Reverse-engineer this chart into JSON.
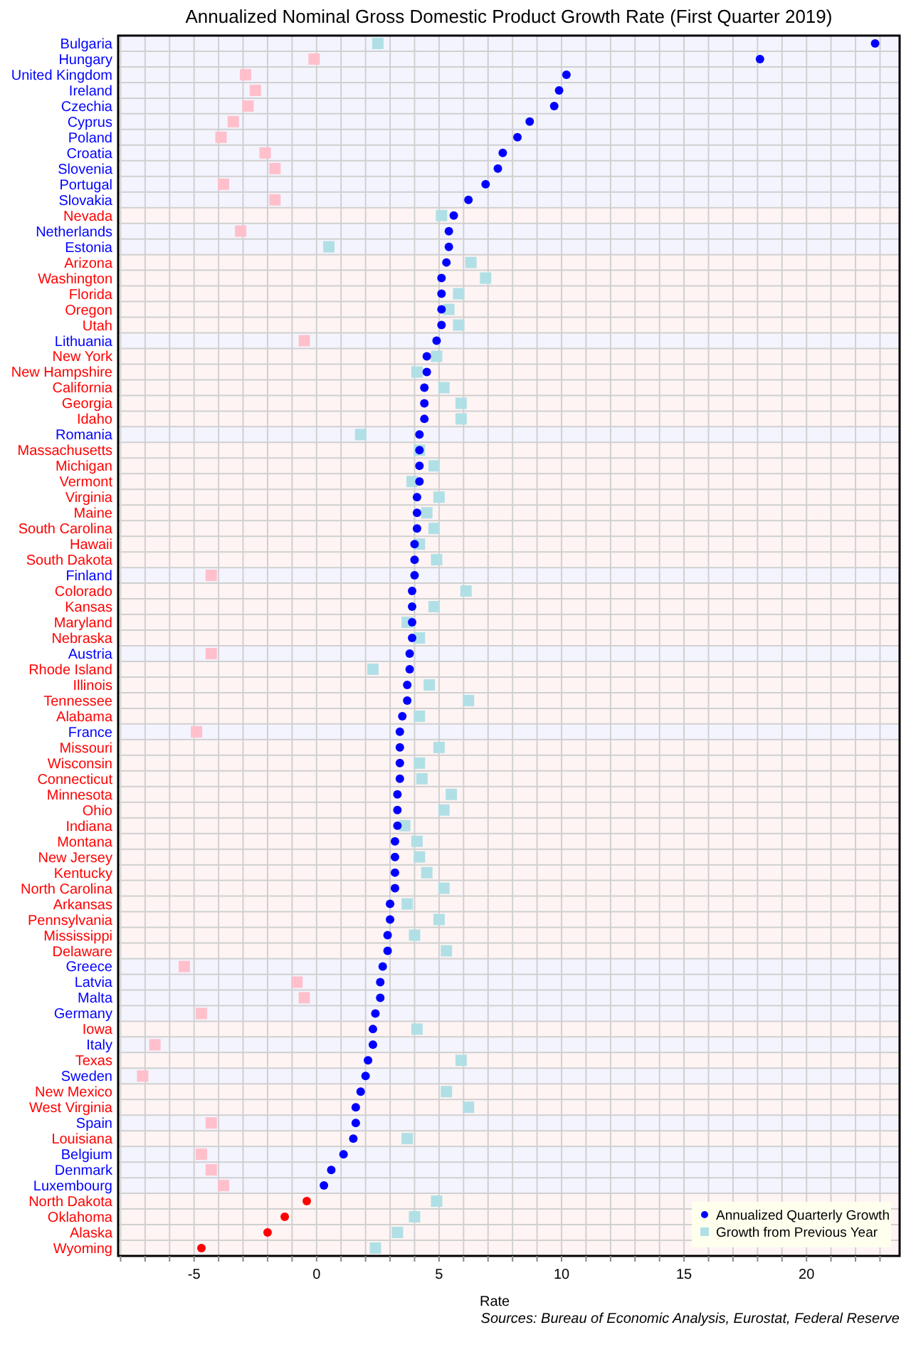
{
  "chart_data": {
    "type": "scatter",
    "title": "Annualized Nominal Gross Domestic Product Growth Rate (First Quarter 2019)",
    "xlabel": "Rate",
    "orientation": "horizontal",
    "annotations": [
      "Sources: Bureau of Economic Analysis, Eurostat, Federal Reserve"
    ],
    "categories": [
      "Bulgaria",
      "Hungary",
      "United Kingdom",
      "Ireland",
      "Czechia",
      "Cyprus",
      "Poland",
      "Croatia",
      "Slovenia",
      "Portugal",
      "Slovakia",
      "Nevada",
      "Netherlands",
      "Estonia",
      "Arizona",
      "Washington",
      "Florida",
      "Oregon",
      "Utah",
      "Lithuania",
      "New York",
      "New Hampshire",
      "California",
      "Georgia",
      "Idaho",
      "Romania",
      "Massachusetts",
      "Michigan",
      "Vermont",
      "Virginia",
      "Maine",
      "South Carolina",
      "Hawaii",
      "South Dakota",
      "Finland",
      "Colorado",
      "Kansas",
      "Maryland",
      "Nebraska",
      "Austria",
      "Rhode Island",
      "Illinois",
      "Tennessee",
      "Alabama",
      "France",
      "Missouri",
      "Wisconsin",
      "Connecticut",
      "Minnesota",
      "Ohio",
      "Indiana",
      "Montana",
      "New Jersey",
      "Kentucky",
      "North Carolina",
      "Arkansas",
      "Pennsylvania",
      "Mississippi",
      "Delaware",
      "Greece",
      "Latvia",
      "Malta",
      "Germany",
      "Iowa",
      "Italy",
      "Texas",
      "Sweden",
      "New Mexico",
      "West Virginia",
      "Spain",
      "Louisiana",
      "Belgium",
      "Denmark",
      "Luxembourg",
      "North Dakota",
      "Oklahoma",
      "Alaska",
      "Wyoming"
    ],
    "series": [
      {
        "name": "Growth from Previous Year",
        "marker": "square",
        "color": "#b0e0e6",
        "colors": [
          "#b0e0e6",
          "#ffc0cb",
          "#ffc0cb",
          "#ffc0cb",
          "#ffc0cb",
          "#ffc0cb",
          "#ffc0cb",
          "#ffc0cb",
          "#ffc0cb",
          "#ffc0cb",
          "#ffc0cb",
          "#b0e0e6",
          "#ffc0cb",
          "#b0e0e6",
          "#b0e0e6",
          "#b0e0e6",
          "#b0e0e6",
          "#b0e0e6",
          "#b0e0e6",
          "#ffc0cb",
          "#b0e0e6",
          "#b0e0e6",
          "#b0e0e6",
          "#b0e0e6",
          "#b0e0e6",
          "#b0e0e6",
          "#b0e0e6",
          "#b0e0e6",
          "#b0e0e6",
          "#b0e0e6",
          "#b0e0e6",
          "#b0e0e6",
          "#b0e0e6",
          "#b0e0e6",
          "#ffc0cb",
          "#b0e0e6",
          "#b0e0e6",
          "#b0e0e6",
          "#b0e0e6",
          "#ffc0cb",
          "#b0e0e6",
          "#b0e0e6",
          "#b0e0e6",
          "#b0e0e6",
          "#ffc0cb",
          "#b0e0e6",
          "#b0e0e6",
          "#b0e0e6",
          "#b0e0e6",
          "#b0e0e6",
          "#b0e0e6",
          "#b0e0e6",
          "#b0e0e6",
          "#b0e0e6",
          "#b0e0e6",
          "#b0e0e6",
          "#b0e0e6",
          "#b0e0e6",
          "#b0e0e6",
          "#ffc0cb",
          "#ffc0cb",
          "#ffc0cb",
          "#ffc0cb",
          "#b0e0e6",
          "#ffc0cb",
          "#b0e0e6",
          "#ffc0cb",
          "#b0e0e6",
          "#b0e0e6",
          "#ffc0cb",
          "#b0e0e6",
          "#ffc0cb",
          "#ffc0cb",
          "#ffc0cb",
          "#b0e0e6",
          "#b0e0e6",
          "#b0e0e6",
          "#b0e0e6"
        ],
        "values": [
          2.5,
          -0.1,
          -2.9,
          -2.5,
          -2.8,
          -3.4,
          -3.9,
          -2.1,
          -1.7,
          -3.8,
          -1.7,
          5.1,
          -3.1,
          0.5,
          6.3,
          6.9,
          5.8,
          5.4,
          5.8,
          -0.5,
          4.9,
          4.1,
          5.2,
          5.9,
          5.9,
          1.8,
          4.2,
          4.8,
          3.9,
          5.0,
          4.5,
          4.8,
          4.2,
          4.9,
          -4.3,
          6.1,
          4.8,
          3.7,
          4.2,
          -4.3,
          2.3,
          4.6,
          6.2,
          4.2,
          -4.9,
          5.0,
          4.2,
          4.3,
          5.5,
          5.2,
          3.6,
          4.1,
          4.2,
          4.5,
          5.2,
          3.7,
          5.0,
          4.0,
          5.3,
          -5.4,
          -0.8,
          -0.5,
          -4.7,
          4.1,
          -6.6,
          5.9,
          -7.1,
          5.3,
          6.2,
          -4.3,
          3.7,
          -4.7,
          -4.3,
          -3.8,
          4.9,
          4.0,
          3.3,
          2.4
        ]
      },
      {
        "name": "Annualized Quarterly Growth",
        "marker": "circle",
        "color": "#0000ff",
        "colors": [
          "#0000ff",
          "#0000ff",
          "#0000ff",
          "#0000ff",
          "#0000ff",
          "#0000ff",
          "#0000ff",
          "#0000ff",
          "#0000ff",
          "#0000ff",
          "#0000ff",
          "#0000ff",
          "#0000ff",
          "#0000ff",
          "#0000ff",
          "#0000ff",
          "#0000ff",
          "#0000ff",
          "#0000ff",
          "#0000ff",
          "#0000ff",
          "#0000ff",
          "#0000ff",
          "#0000ff",
          "#0000ff",
          "#0000ff",
          "#0000ff",
          "#0000ff",
          "#0000ff",
          "#0000ff",
          "#0000ff",
          "#0000ff",
          "#0000ff",
          "#0000ff",
          "#0000ff",
          "#0000ff",
          "#0000ff",
          "#0000ff",
          "#0000ff",
          "#0000ff",
          "#0000ff",
          "#0000ff",
          "#0000ff",
          "#0000ff",
          "#0000ff",
          "#0000ff",
          "#0000ff",
          "#0000ff",
          "#0000ff",
          "#0000ff",
          "#0000ff",
          "#0000ff",
          "#0000ff",
          "#0000ff",
          "#0000ff",
          "#0000ff",
          "#0000ff",
          "#0000ff",
          "#0000ff",
          "#0000ff",
          "#0000ff",
          "#0000ff",
          "#0000ff",
          "#0000ff",
          "#0000ff",
          "#0000ff",
          "#0000ff",
          "#0000ff",
          "#0000ff",
          "#0000ff",
          "#0000ff",
          "#0000ff",
          "#0000ff",
          "#0000ff",
          "#ff0000",
          "#ff0000",
          "#ff0000",
          "#ff0000"
        ],
        "values": [
          22.8,
          18.1,
          10.2,
          9.9,
          9.7,
          8.7,
          8.2,
          7.6,
          7.4,
          6.9,
          6.2,
          5.6,
          5.4,
          5.4,
          5.3,
          5.1,
          5.1,
          5.1,
          5.1,
          4.9,
          4.5,
          4.5,
          4.4,
          4.4,
          4.4,
          4.2,
          4.2,
          4.2,
          4.2,
          4.1,
          4.1,
          4.1,
          4.0,
          4.0,
          4.0,
          3.9,
          3.9,
          3.9,
          3.9,
          3.8,
          3.8,
          3.7,
          3.7,
          3.5,
          3.4,
          3.4,
          3.4,
          3.4,
          3.3,
          3.3,
          3.3,
          3.2,
          3.2,
          3.2,
          3.2,
          3.0,
          3.0,
          2.9,
          2.9,
          2.7,
          2.6,
          2.6,
          2.4,
          2.3,
          2.3,
          2.1,
          2.0,
          1.8,
          1.6,
          1.6,
          1.5,
          1.1,
          0.6,
          0.3,
          -0.4,
          -1.3,
          -2.0,
          -4.7
        ]
      }
    ],
    "xlim": [
      -8.1,
      23.8
    ],
    "xticks": [
      {
        "value": -8,
        "label": null
      },
      {
        "value": -7,
        "label": null
      },
      {
        "value": -6,
        "label": null
      },
      -5,
      {
        "value": -4,
        "label": null
      },
      {
        "value": -3,
        "label": null
      },
      {
        "value": -2,
        "label": null
      },
      {
        "value": -1,
        "label": null
      },
      0,
      {
        "value": 1,
        "label": null
      },
      {
        "value": 2,
        "label": null
      },
      {
        "value": 3,
        "label": null
      },
      {
        "value": 4,
        "label": null
      },
      5,
      {
        "value": 6,
        "label": null
      },
      {
        "value": 7,
        "label": null
      },
      {
        "value": 8,
        "label": null
      },
      {
        "value": 9,
        "label": null
      },
      10,
      {
        "value": 11,
        "label": null
      },
      {
        "value": 12,
        "label": null
      },
      {
        "value": 13,
        "label": null
      },
      {
        "value": 14,
        "label": null
      },
      15,
      {
        "value": 16,
        "label": null
      },
      {
        "value": 17,
        "label": null
      },
      {
        "value": 18,
        "label": null
      },
      {
        "value": 19,
        "label": null
      },
      20,
      {
        "value": 21,
        "label": null
      },
      {
        "value": 22,
        "label": null
      },
      {
        "value": 23,
        "label": null
      }
    ],
    "bands": [
      {
        "axis": "y",
        "from": "Bulgaria",
        "to": "Slovakia",
        "color": "#f4f4ff"
      },
      {
        "axis": "y",
        "from": "Nevada",
        "to": "Nevada",
        "color": "#fff4f4"
      },
      {
        "axis": "y",
        "from": "Netherlands",
        "to": "Estonia",
        "color": "#f4f4ff"
      },
      {
        "axis": "y",
        "from": "Arizona",
        "to": "Utah",
        "color": "#fff4f4"
      },
      {
        "axis": "y",
        "from": "Lithuania",
        "to": "Lithuania",
        "color": "#f4f4ff"
      },
      {
        "axis": "y",
        "from": "New York",
        "to": "Idaho",
        "color": "#fff4f4"
      },
      {
        "axis": "y",
        "from": "Romania",
        "to": "Romania",
        "color": "#f4f4ff"
      },
      {
        "axis": "y",
        "from": "Massachusetts",
        "to": "South Dakota",
        "color": "#fff4f4"
      },
      {
        "axis": "y",
        "from": "Finland",
        "to": "Finland",
        "color": "#f4f4ff"
      },
      {
        "axis": "y",
        "from": "Colorado",
        "to": "Nebraska",
        "color": "#fff4f4"
      },
      {
        "axis": "y",
        "from": "Austria",
        "to": "Austria",
        "color": "#f4f4ff"
      },
      {
        "axis": "y",
        "from": "Rhode Island",
        "to": "Alabama",
        "color": "#fff4f4"
      },
      {
        "axis": "y",
        "from": "France",
        "to": "France",
        "color": "#f4f4ff"
      },
      {
        "axis": "y",
        "from": "Missouri",
        "to": "Delaware",
        "color": "#fff4f4"
      },
      {
        "axis": "y",
        "from": "Greece",
        "to": "Germany",
        "color": "#f4f4ff"
      },
      {
        "axis": "y",
        "from": "Iowa",
        "to": "Iowa",
        "color": "#fff4f4"
      },
      {
        "axis": "y",
        "from": "Italy",
        "to": "Italy",
        "color": "#f4f4ff"
      },
      {
        "axis": "y",
        "from": "Texas",
        "to": "Texas",
        "color": "#fff4f4"
      },
      {
        "axis": "y",
        "from": "Sweden",
        "to": "Sweden",
        "color": "#f4f4ff"
      },
      {
        "axis": "y",
        "from": "New Mexico",
        "to": "West Virginia",
        "color": "#fff4f4"
      },
      {
        "axis": "y",
        "from": "Spain",
        "to": "Spain",
        "color": "#f4f4ff"
      },
      {
        "axis": "y",
        "from": "Louisiana",
        "to": "Louisiana",
        "color": "#fff4f4"
      },
      {
        "axis": "y",
        "from": "Belgium",
        "to": "Luxembourg",
        "color": "#f4f4ff"
      },
      {
        "axis": "y",
        "from": "North Dakota",
        "to": "Wyoming",
        "color": "#fff4f4"
      }
    ],
    "grid": true,
    "legend": "bottom right"
  }
}
